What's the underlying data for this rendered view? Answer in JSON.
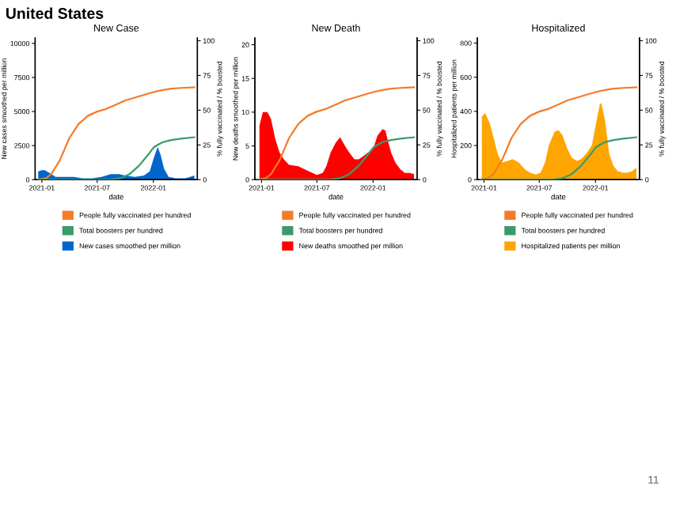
{
  "chart_data": [
    {
      "type": "area",
      "title": "New Case",
      "xlabel": "date",
      "ylabel": "New cases smoothed per million",
      "y2label": "% fully vaccinated / % boosted",
      "annotations": [
        "United States"
      ],
      "xlim": [
        "2020-12-10",
        "2022-05-25"
      ],
      "xticks": [
        {
          "value": "2021-01-01",
          "label": "2021-01"
        },
        {
          "value": "2021-07-01",
          "label": "2021-07"
        },
        {
          "value": "2022-01-01",
          "label": "2022-01"
        }
      ],
      "ylim": [
        0,
        10400
      ],
      "yticks": [
        0,
        2500,
        5000,
        7500,
        10000
      ],
      "y2lim": [
        0,
        102
      ],
      "y2ticks": [
        0,
        25,
        50,
        75,
        100
      ],
      "legend": "bottom",
      "grid": false,
      "series": [
        {
          "name": "People fully vaccinated per hundred",
          "type": "line",
          "axis": "y2",
          "color": "#f47b2a",
          "x": [
            "2020-12-20",
            "2021-01-15",
            "2021-02-01",
            "2021-03-01",
            "2021-04-01",
            "2021-05-01",
            "2021-06-01",
            "2021-07-01",
            "2021-08-01",
            "2021-09-01",
            "2021-10-01",
            "2021-11-01",
            "2021-12-01",
            "2022-01-01",
            "2022-02-01",
            "2022-03-01",
            "2022-04-01",
            "2022-05-15"
          ],
          "values": [
            0,
            1,
            4,
            14,
            30,
            40,
            46,
            49,
            51,
            54,
            57,
            59,
            61,
            63,
            64.5,
            65.5,
            66,
            66.5
          ]
        },
        {
          "name": "Total boosters per hundred",
          "type": "line",
          "axis": "y2",
          "color": "#3a9a6a",
          "x": [
            "2020-12-20",
            "2021-08-15",
            "2021-09-15",
            "2021-10-15",
            "2021-11-15",
            "2021-12-15",
            "2022-01-01",
            "2022-01-15",
            "2022-02-01",
            "2022-03-01",
            "2022-04-01",
            "2022-05-15"
          ],
          "values": [
            0,
            0,
            1,
            4,
            10,
            18,
            23,
            25,
            27,
            28.5,
            29.5,
            30.5
          ]
        },
        {
          "name": "New cases smoothed per million",
          "axis": "y",
          "color": "#0066cc",
          "x": [
            "2020-12-20",
            "2021-01-01",
            "2021-01-10",
            "2021-01-25",
            "2021-02-15",
            "2021-03-15",
            "2021-04-15",
            "2021-05-15",
            "2021-06-15",
            "2021-07-15",
            "2021-08-15",
            "2021-09-10",
            "2021-10-01",
            "2021-11-01",
            "2021-12-01",
            "2021-12-20",
            "2022-01-01",
            "2022-01-15",
            "2022-01-25",
            "2022-02-05",
            "2022-02-20",
            "2022-03-15",
            "2022-04-15",
            "2022-05-01",
            "2022-05-15"
          ],
          "values": [
            600,
            700,
            700,
            500,
            200,
            200,
            200,
            100,
            100,
            200,
            400,
            400,
            300,
            200,
            300,
            600,
            1500,
            2400,
            1800,
            800,
            200,
            100,
            100,
            200,
            300
          ]
        }
      ]
    },
    {
      "type": "area",
      "title": "New Death",
      "xlabel": "date",
      "ylabel": "New deaths smoothed per million",
      "y2label": "% fully vaccinated / % boosted",
      "xlim": [
        "2020-12-10",
        "2022-05-25"
      ],
      "xticks": [
        {
          "value": "2021-01-01",
          "label": "2021-01"
        },
        {
          "value": "2021-07-01",
          "label": "2021-07"
        },
        {
          "value": "2022-01-01",
          "label": "2022-01"
        }
      ],
      "ylim": [
        0,
        21
      ],
      "yticks": [
        0,
        5,
        10,
        15,
        20
      ],
      "y2lim": [
        0,
        102
      ],
      "y2ticks": [
        0,
        25,
        50,
        75,
        100
      ],
      "legend": "bottom",
      "grid": false,
      "series": [
        {
          "name": "People fully vaccinated per hundred",
          "type": "line",
          "axis": "y2",
          "color": "#f47b2a",
          "x": [
            "2020-12-20",
            "2021-01-15",
            "2021-02-01",
            "2021-03-01",
            "2021-04-01",
            "2021-05-01",
            "2021-06-01",
            "2021-07-01",
            "2021-08-01",
            "2021-09-01",
            "2021-10-01",
            "2021-11-01",
            "2021-12-01",
            "2022-01-01",
            "2022-02-01",
            "2022-03-01",
            "2022-04-01",
            "2022-05-15"
          ],
          "values": [
            0,
            1,
            4,
            14,
            30,
            40,
            46,
            49,
            51,
            54,
            57,
            59,
            61,
            63,
            64.5,
            65.5,
            66,
            66.5
          ]
        },
        {
          "name": "Total boosters per hundred",
          "type": "line",
          "axis": "y2",
          "color": "#3a9a6a",
          "x": [
            "2020-12-20",
            "2021-08-15",
            "2021-09-15",
            "2021-10-15",
            "2021-11-15",
            "2021-12-15",
            "2022-01-01",
            "2022-01-15",
            "2022-02-01",
            "2022-03-01",
            "2022-04-01",
            "2022-05-15"
          ],
          "values": [
            0,
            0,
            1,
            4,
            10,
            18,
            23,
            25,
            27,
            28.5,
            29.5,
            30.5
          ]
        },
        {
          "name": "New deaths smoothed per million",
          "axis": "y",
          "color": "#ff0000",
          "x": [
            "2020-12-25",
            "2021-01-05",
            "2021-01-20",
            "2021-02-01",
            "2021-02-15",
            "2021-03-01",
            "2021-03-15",
            "2021-04-01",
            "2021-05-01",
            "2021-06-01",
            "2021-07-01",
            "2021-07-20",
            "2021-08-01",
            "2021-08-15",
            "2021-09-01",
            "2021-09-15",
            "2021-10-01",
            "2021-10-15",
            "2021-11-01",
            "2021-11-15",
            "2021-12-01",
            "2021-12-15",
            "2022-01-01",
            "2022-01-15",
            "2022-02-01",
            "2022-02-10",
            "2022-02-20",
            "2022-03-01",
            "2022-03-15",
            "2022-04-01",
            "2022-04-15",
            "2022-05-01",
            "2022-05-15"
          ],
          "values": [
            8,
            10,
            10,
            9,
            6,
            4,
            3,
            2.2,
            2,
            1.3,
            0.7,
            1,
            2,
            4,
            5.5,
            6.3,
            5,
            4,
            3,
            3,
            3.5,
            4,
            4.5,
            6.5,
            7.5,
            7.3,
            5.5,
            4,
            2.5,
            1.5,
            1,
            1,
            0.8
          ]
        }
      ]
    },
    {
      "type": "area",
      "title": "Hospitalized",
      "xlabel": "date",
      "ylabel": "Hospitalized patients per million",
      "y2label": "% fully vaccinated / % boosted",
      "annotations": [
        "11"
      ],
      "xlim": [
        "2020-12-10",
        "2022-05-25"
      ],
      "xticks": [
        {
          "value": "2021-01-01",
          "label": "2021-01"
        },
        {
          "value": "2021-07-01",
          "label": "2021-07"
        },
        {
          "value": "2022-01-01",
          "label": "2022-01"
        }
      ],
      "ylim": [
        0,
        830
      ],
      "yticks": [
        0,
        200,
        400,
        600,
        800
      ],
      "y2lim": [
        0,
        102
      ],
      "y2ticks": [
        0,
        25,
        50,
        75,
        100
      ],
      "legend": "bottom",
      "grid": false,
      "series": [
        {
          "name": "People fully vaccinated per hundred",
          "type": "line",
          "axis": "y2",
          "color": "#f47b2a",
          "x": [
            "2020-12-20",
            "2021-01-15",
            "2021-02-01",
            "2021-03-01",
            "2021-04-01",
            "2021-05-01",
            "2021-06-01",
            "2021-07-01",
            "2021-08-01",
            "2021-09-01",
            "2021-10-01",
            "2021-11-01",
            "2021-12-01",
            "2022-01-01",
            "2022-02-01",
            "2022-03-01",
            "2022-04-01",
            "2022-05-15"
          ],
          "values": [
            0,
            1,
            4,
            14,
            30,
            40,
            46,
            49,
            51,
            54,
            57,
            59,
            61,
            63,
            64.5,
            65.5,
            66,
            66.5
          ]
        },
        {
          "name": "Total boosters per hundred",
          "type": "line",
          "axis": "y2",
          "color": "#3a9a6a",
          "x": [
            "2020-12-20",
            "2021-08-15",
            "2021-09-15",
            "2021-10-15",
            "2021-11-15",
            "2021-12-15",
            "2022-01-01",
            "2022-01-15",
            "2022-02-01",
            "2022-03-01",
            "2022-04-01",
            "2022-05-15"
          ],
          "values": [
            0,
            0,
            1,
            4,
            10,
            18,
            23,
            25,
            27,
            28.5,
            29.5,
            30.5
          ]
        },
        {
          "name": "Hospitalized patients per million",
          "axis": "y",
          "color": "#ffa500",
          "x": [
            "2020-12-25",
            "2021-01-05",
            "2021-01-20",
            "2021-02-01",
            "2021-02-15",
            "2021-03-01",
            "2021-03-20",
            "2021-04-05",
            "2021-04-25",
            "2021-05-15",
            "2021-06-01",
            "2021-06-20",
            "2021-07-05",
            "2021-07-20",
            "2021-08-01",
            "2021-08-20",
            "2021-09-01",
            "2021-09-15",
            "2021-10-01",
            "2021-10-15",
            "2021-11-01",
            "2021-11-15",
            "2021-12-01",
            "2021-12-20",
            "2022-01-05",
            "2022-01-15",
            "2022-01-20",
            "2022-02-01",
            "2022-02-15",
            "2022-03-01",
            "2022-03-15",
            "2022-04-01",
            "2022-04-15",
            "2022-05-01",
            "2022-05-15"
          ],
          "values": [
            370,
            390,
            330,
            250,
            150,
            100,
            110,
            120,
            100,
            60,
            40,
            30,
            40,
            100,
            200,
            280,
            290,
            260,
            180,
            130,
            110,
            120,
            150,
            200,
            350,
            440,
            450,
            350,
            150,
            80,
            50,
            40,
            40,
            50,
            70
          ]
        }
      ]
    }
  ]
}
